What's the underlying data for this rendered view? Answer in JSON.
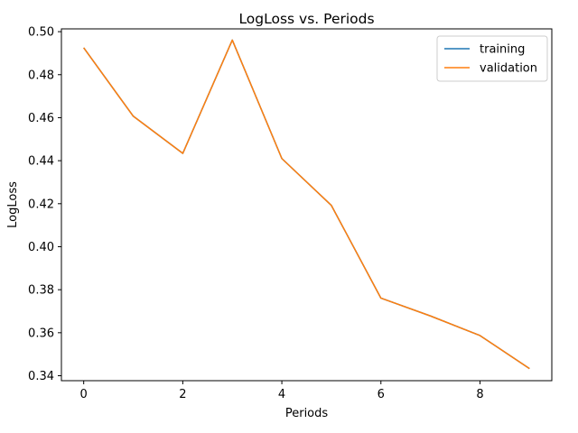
{
  "chart_data": {
    "type": "line",
    "title": "LogLoss vs. Periods",
    "xlabel": "Periods",
    "ylabel": "LogLoss",
    "x": [
      0,
      1,
      2,
      3,
      4,
      5,
      6,
      7,
      8,
      9
    ],
    "xlim": [
      -0.45,
      9.45
    ],
    "ylim": [
      0.3377,
      0.5013
    ],
    "xticks": [
      0,
      2,
      4,
      6,
      8
    ],
    "yticks": [
      0.34,
      0.36,
      0.38,
      0.4,
      0.42,
      0.44,
      0.46,
      0.48,
      0.5
    ],
    "ytick_labels": [
      "0.34",
      "0.36",
      "0.38",
      "0.40",
      "0.42",
      "0.44",
      "0.46",
      "0.48",
      "0.50"
    ],
    "grid": false,
    "legend_position": "top-right",
    "series": [
      {
        "name": "training",
        "color": "#1f77b4",
        "values": [
          0.4925,
          0.4607,
          0.4434,
          0.4961,
          0.441,
          0.4192,
          0.3761,
          0.3678,
          0.3587,
          0.3433
        ]
      },
      {
        "name": "validation",
        "color": "#ff7f0e",
        "values": [
          0.4925,
          0.4607,
          0.4434,
          0.4961,
          0.441,
          0.4192,
          0.3761,
          0.3678,
          0.3587,
          0.3433
        ]
      }
    ]
  }
}
